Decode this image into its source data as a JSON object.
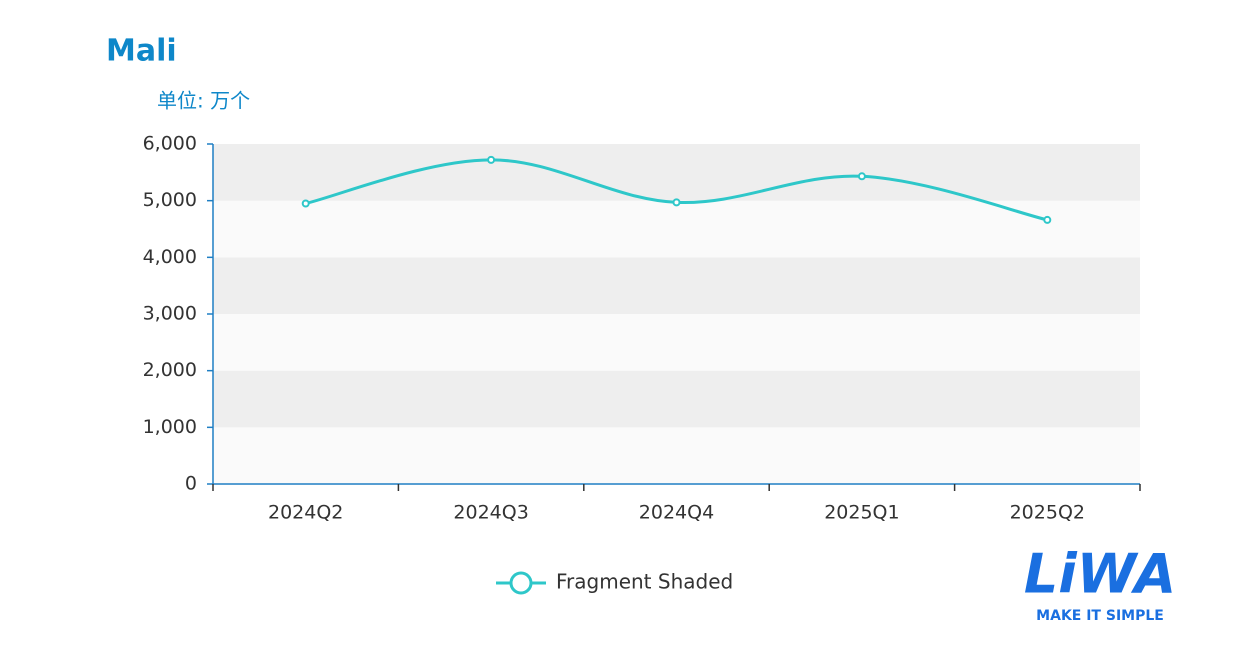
{
  "chart_data": {
    "type": "line",
    "title": "Mali",
    "subtitle": "单位: 万个",
    "categories": [
      "2024Q2",
      "2024Q3",
      "2024Q4",
      "2025Q1",
      "2025Q2"
    ],
    "series": [
      {
        "name": "Fragment Shaded",
        "color": "#2ec7c9",
        "values": [
          4950,
          5720,
          4970,
          5430,
          4660
        ]
      }
    ],
    "ylim": [
      0,
      6000
    ],
    "yticks": [
      0,
      {
        "value": 1000,
        "label": "1,000"
      },
      {
        "value": 2000,
        "label": "2,000"
      },
      {
        "value": 3000,
        "label": "3,000"
      },
      {
        "value": 4000,
        "label": "4,000"
      },
      {
        "value": 5000,
        "label": "5,000"
      },
      {
        "value": 6000,
        "label": "6,000"
      }
    ],
    "smooth": true,
    "split_area": true,
    "legend": "bottom"
  },
  "logo": {
    "text": "LiWA",
    "tagline": "MAKE IT SIMPLE"
  }
}
